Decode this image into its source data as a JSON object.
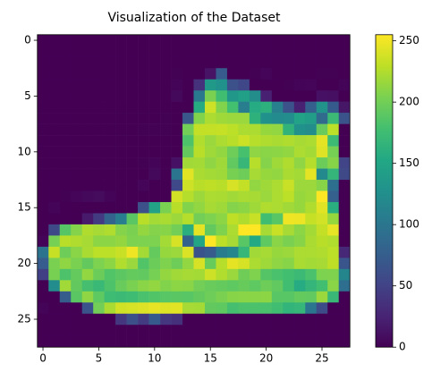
{
  "chart_data": {
    "type": "heatmap",
    "title": "Visualization of the Dataset",
    "colormap": "viridis",
    "xlim": [
      -0.5,
      27.5
    ],
    "ylim": [
      27.5,
      -0.5
    ],
    "xticks": [
      0,
      5,
      10,
      15,
      20,
      25
    ],
    "yticks": [
      0,
      5,
      10,
      15,
      20,
      25
    ],
    "clim": [
      0,
      255
    ],
    "colorbar_ticks": [
      0,
      50,
      100,
      150,
      200,
      250
    ],
    "z": [
      [
        0,
        0,
        0,
        0,
        0,
        0,
        0,
        0,
        0,
        0,
        0,
        0,
        0,
        0,
        0,
        0,
        0,
        0,
        0,
        0,
        0,
        0,
        0,
        0,
        0,
        0,
        0,
        0
      ],
      [
        0,
        0,
        0,
        0,
        0,
        0,
        0,
        0,
        0,
        0,
        0,
        0,
        0,
        0,
        0,
        0,
        0,
        0,
        0,
        0,
        0,
        0,
        0,
        0,
        0,
        0,
        0,
        0
      ],
      [
        0,
        0,
        0,
        0,
        0,
        0,
        0,
        0,
        0,
        0,
        0,
        0,
        0,
        0,
        0,
        0,
        0,
        0,
        0,
        0,
        0,
        0,
        0,
        0,
        0,
        0,
        0,
        0
      ],
      [
        0,
        0,
        0,
        0,
        0,
        0,
        0,
        0,
        0,
        0,
        0,
        0,
        1,
        0,
        0,
        13,
        73,
        0,
        0,
        1,
        4,
        0,
        0,
        0,
        0,
        1,
        1,
        0
      ],
      [
        0,
        0,
        0,
        0,
        0,
        0,
        0,
        0,
        0,
        0,
        0,
        0,
        3,
        0,
        36,
        136,
        127,
        62,
        54,
        0,
        0,
        0,
        1,
        3,
        4,
        0,
        0,
        3
      ],
      [
        0,
        0,
        0,
        0,
        0,
        0,
        0,
        0,
        0,
        0,
        0,
        0,
        6,
        0,
        102,
        204,
        176,
        134,
        144,
        123,
        23,
        0,
        0,
        0,
        0,
        12,
        10,
        0
      ],
      [
        0,
        0,
        0,
        0,
        0,
        0,
        0,
        0,
        0,
        0,
        0,
        0,
        0,
        0,
        155,
        236,
        207,
        178,
        107,
        156,
        161,
        109,
        64,
        23,
        77,
        130,
        72,
        15
      ],
      [
        0,
        0,
        0,
        0,
        0,
        0,
        0,
        0,
        0,
        0,
        0,
        1,
        0,
        69,
        207,
        223,
        218,
        216,
        216,
        163,
        127,
        121,
        122,
        146,
        141,
        88,
        172,
        66
      ],
      [
        0,
        0,
        0,
        0,
        0,
        0,
        0,
        0,
        0,
        1,
        1,
        1,
        0,
        200,
        232,
        232,
        233,
        229,
        223,
        223,
        215,
        213,
        164,
        127,
        123,
        196,
        229,
        0
      ],
      [
        0,
        0,
        0,
        0,
        0,
        0,
        0,
        0,
        0,
        0,
        0,
        0,
        0,
        183,
        225,
        216,
        223,
        228,
        235,
        227,
        224,
        222,
        224,
        221,
        223,
        245,
        173,
        0
      ],
      [
        0,
        0,
        0,
        0,
        0,
        0,
        0,
        0,
        0,
        0,
        0,
        0,
        0,
        193,
        228,
        218,
        213,
        198,
        180,
        212,
        210,
        211,
        213,
        223,
        220,
        243,
        202,
        0
      ],
      [
        0,
        0,
        0,
        0,
        0,
        0,
        0,
        0,
        0,
        1,
        3,
        0,
        12,
        219,
        220,
        212,
        218,
        192,
        169,
        227,
        208,
        218,
        224,
        212,
        226,
        197,
        209,
        52
      ],
      [
        0,
        0,
        0,
        0,
        0,
        0,
        0,
        0,
        0,
        0,
        6,
        0,
        99,
        244,
        222,
        220,
        218,
        203,
        198,
        221,
        215,
        213,
        222,
        220,
        245,
        119,
        167,
        56
      ],
      [
        0,
        0,
        0,
        0,
        0,
        0,
        0,
        0,
        0,
        4,
        0,
        0,
        55,
        236,
        228,
        230,
        228,
        240,
        232,
        213,
        218,
        223,
        234,
        217,
        217,
        209,
        92,
        0
      ],
      [
        0,
        0,
        1,
        4,
        6,
        7,
        2,
        0,
        0,
        0,
        0,
        0,
        237,
        226,
        217,
        223,
        222,
        219,
        222,
        221,
        216,
        223,
        229,
        215,
        218,
        255,
        77,
        0
      ],
      [
        0,
        3,
        0,
        0,
        0,
        0,
        0,
        0,
        0,
        62,
        145,
        204,
        228,
        207,
        213,
        221,
        218,
        208,
        211,
        218,
        224,
        223,
        219,
        215,
        224,
        244,
        159,
        0
      ],
      [
        0,
        0,
        0,
        0,
        18,
        44,
        82,
        107,
        189,
        228,
        220,
        222,
        217,
        226,
        200,
        205,
        211,
        230,
        224,
        234,
        176,
        188,
        250,
        248,
        233,
        238,
        215,
        0
      ],
      [
        0,
        57,
        187,
        208,
        224,
        221,
        224,
        208,
        204,
        214,
        208,
        209,
        200,
        159,
        245,
        193,
        206,
        223,
        255,
        255,
        221,
        234,
        221,
        211,
        220,
        232,
        246,
        0
      ],
      [
        3,
        202,
        228,
        224,
        221,
        211,
        211,
        214,
        205,
        205,
        205,
        220,
        240,
        80,
        150,
        255,
        229,
        221,
        188,
        154,
        191,
        210,
        204,
        209,
        222,
        228,
        225,
        0
      ],
      [
        98,
        233,
        198,
        210,
        222,
        229,
        229,
        234,
        249,
        220,
        194,
        215,
        217,
        241,
        65,
        73,
        106,
        117,
        168,
        219,
        221,
        215,
        217,
        223,
        223,
        224,
        229,
        29
      ],
      [
        75,
        204,
        212,
        204,
        193,
        205,
        211,
        225,
        216,
        185,
        197,
        206,
        198,
        213,
        240,
        195,
        227,
        245,
        239,
        223,
        218,
        212,
        209,
        222,
        220,
        221,
        230,
        67
      ],
      [
        48,
        203,
        183,
        194,
        213,
        197,
        185,
        190,
        194,
        192,
        202,
        214,
        219,
        221,
        220,
        236,
        225,
        216,
        199,
        206,
        186,
        181,
        177,
        172,
        181,
        205,
        206,
        115
      ],
      [
        0,
        122,
        219,
        193,
        179,
        171,
        183,
        196,
        204,
        210,
        213,
        207,
        211,
        210,
        200,
        196,
        194,
        191,
        195,
        191,
        198,
        192,
        176,
        156,
        167,
        177,
        210,
        92
      ],
      [
        0,
        0,
        74,
        189,
        212,
        191,
        175,
        172,
        175,
        181,
        185,
        188,
        189,
        188,
        193,
        198,
        204,
        209,
        210,
        210,
        211,
        188,
        188,
        194,
        192,
        216,
        170,
        0
      ],
      [
        2,
        0,
        0,
        0,
        66,
        200,
        222,
        237,
        239,
        242,
        246,
        243,
        244,
        221,
        220,
        193,
        191,
        179,
        182,
        182,
        181,
        176,
        166,
        168,
        99,
        58,
        0,
        0
      ],
      [
        0,
        0,
        0,
        0,
        0,
        0,
        0,
        40,
        61,
        44,
        72,
        41,
        35,
        0,
        0,
        0,
        0,
        0,
        0,
        0,
        0,
        0,
        0,
        0,
        0,
        0,
        0,
        0
      ],
      [
        0,
        0,
        0,
        0,
        0,
        0,
        0,
        0,
        0,
        0,
        0,
        0,
        0,
        0,
        0,
        0,
        0,
        0,
        0,
        0,
        0,
        0,
        0,
        0,
        0,
        0,
        0,
        0
      ],
      [
        0,
        0,
        0,
        0,
        0,
        0,
        0,
        0,
        0,
        0,
        0,
        0,
        0,
        0,
        0,
        0,
        0,
        0,
        0,
        0,
        0,
        0,
        0,
        0,
        0,
        0,
        0,
        0
      ]
    ]
  }
}
